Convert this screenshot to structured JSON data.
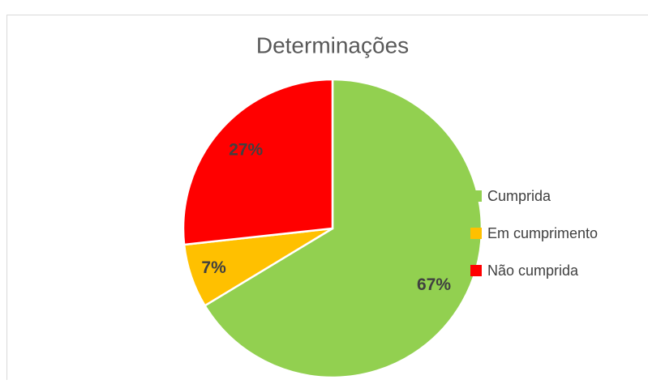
{
  "chart_data": {
    "type": "pie",
    "title": "Determinações",
    "categories": [
      "Cumprida",
      "Em cumprimento",
      "Não cumprida"
    ],
    "values": [
      67,
      7,
      27
    ],
    "value_labels": [
      "67%",
      "7%",
      "27%"
    ],
    "colors": [
      "#92d050",
      "#ffc000",
      "#ff0000"
    ],
    "legend": "right"
  }
}
